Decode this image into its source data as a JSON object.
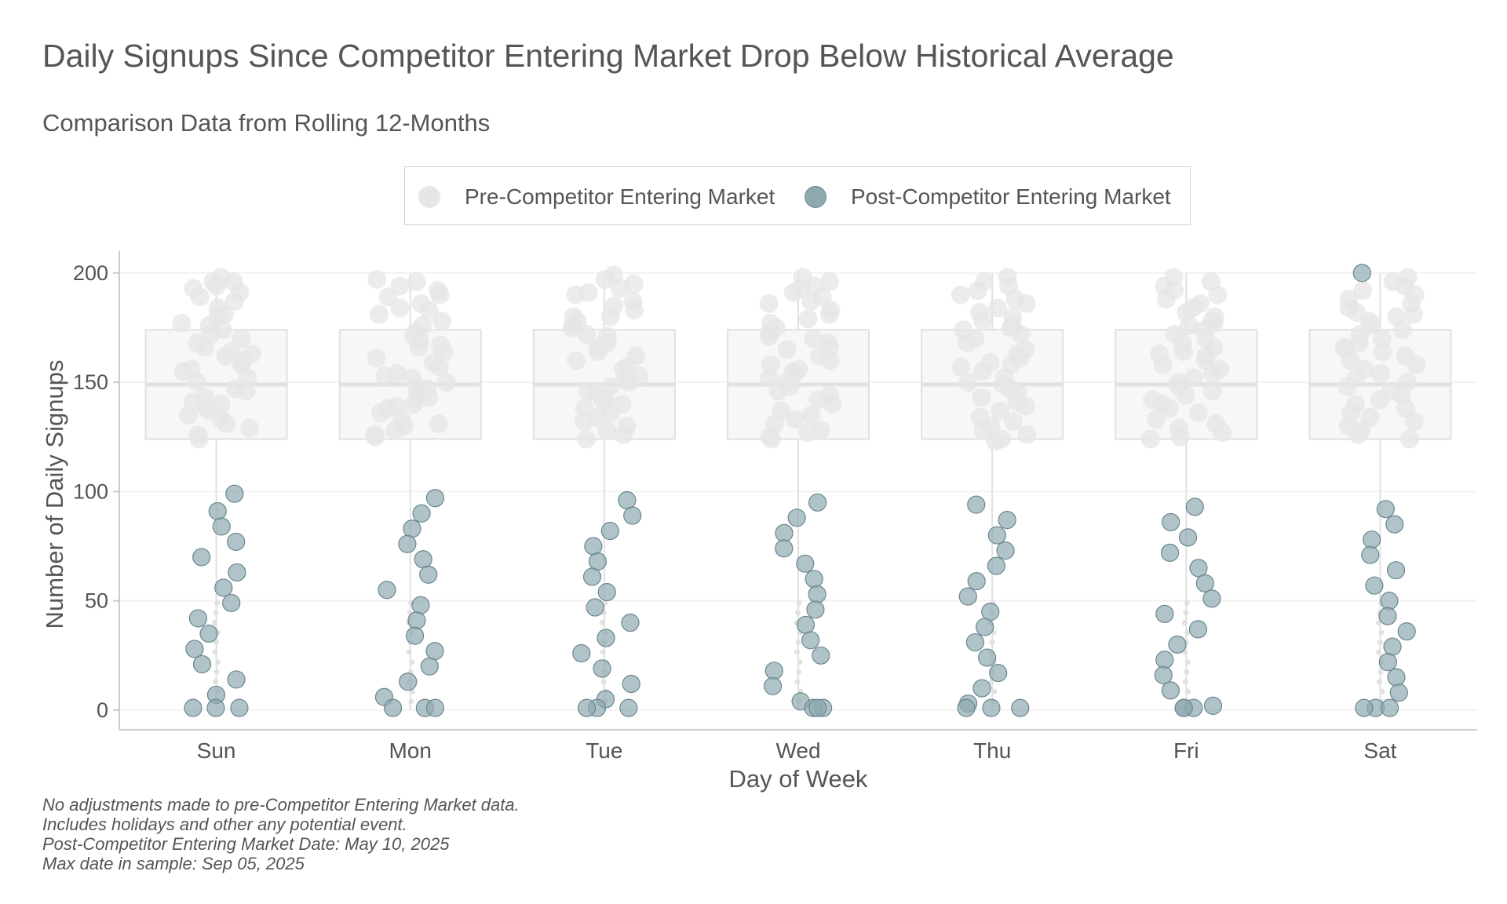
{
  "title": "Daily Signups Since Competitor Entering Market Drop Below Historical Average",
  "subtitle": "Comparison Data from Rolling 12-Months",
  "legend": {
    "pre_label": "Pre-Competitor Entering Market",
    "post_label": "Post-Competitor Entering Market"
  },
  "colors": {
    "pre_point": "#e6e6e6",
    "post_point": "#8fa9b0",
    "post_point_stroke": "#6b878f",
    "box_fill": "#f7f7f7",
    "box_stroke": "#e1e1e1",
    "axis_line": "#cccccc",
    "grid": "#f2f2f2",
    "text": "#555555"
  },
  "footnotes": [
    "No adjustments made to pre-Competitor Entering Market data.",
    "Includes holidays and other any potential event.",
    "Post-Competitor Entering Market Date: May 10, 2025",
    "Max date in sample: Sep 05, 2025"
  ],
  "chart_data": {
    "type": "scatter",
    "subtype": "jittered strip plot with boxplot of pre-competitor period",
    "title": "Daily Signups Since Competitor Entering Market Drop Below Historical Average",
    "subtitle": "Comparison Data from Rolling 12-Months",
    "xlabel": "Day of Week",
    "ylabel": "Number of Daily Signups",
    "categories": [
      "Sun",
      "Mon",
      "Tue",
      "Wed",
      "Thu",
      "Fri",
      "Sat"
    ],
    "ylim": [
      -9,
      210
    ],
    "yticks": [
      0,
      50,
      100,
      150,
      200
    ],
    "grid": true,
    "legend_position": "top",
    "boxplots": [
      {
        "category": "Sun",
        "q1": 124,
        "median": 149,
        "q3": 174,
        "whisker_low": 0,
        "whisker_high": 200
      },
      {
        "category": "Mon",
        "q1": 124,
        "median": 149,
        "q3": 174,
        "whisker_low": 0,
        "whisker_high": 200
      },
      {
        "category": "Tue",
        "q1": 124,
        "median": 149,
        "q3": 174,
        "whisker_low": 0,
        "whisker_high": 200
      },
      {
        "category": "Wed",
        "q1": 124,
        "median": 149,
        "q3": 174,
        "whisker_low": 0,
        "whisker_high": 200
      },
      {
        "category": "Thu",
        "q1": 124,
        "median": 149,
        "q3": 174,
        "whisker_low": 0,
        "whisker_high": 200
      },
      {
        "category": "Fri",
        "q1": 124,
        "median": 149,
        "q3": 174,
        "whisker_low": 0,
        "whisker_high": 200
      },
      {
        "category": "Sat",
        "q1": 124,
        "median": 149,
        "q3": 174,
        "whisker_low": 0,
        "whisker_high": 200
      }
    ],
    "series": [
      {
        "name": "Pre-Competitor Entering Market",
        "points": [
          {
            "category": "Sun",
            "values": [
              193,
              196,
              198,
              196,
              189,
              191,
              187,
              194,
              180,
              184,
              177,
              174,
              181,
              176,
              170,
              166,
              172,
              168,
              163,
              164,
              160,
              158,
              155,
              162,
              152,
              150,
              147,
              156,
              146,
              141,
              143,
              140,
              138,
              137,
              133,
              135,
              131,
              129,
              126,
              124
            ]
          },
          {
            "category": "Mon",
            "values": [
              196,
              197,
              194,
              192,
              189,
              190,
              186,
              183,
              181,
              176,
              178,
              173,
              171,
              169,
              166,
              164,
              167,
              161,
              159,
              157,
              154,
              153,
              150,
              148,
              147,
              145,
              143,
              142,
              139,
              138,
              136,
              133,
              131,
              130,
              128,
              126,
              125,
              140,
              152,
              184
            ]
          },
          {
            "category": "Tue",
            "values": [
              199,
              197,
              195,
              193,
              190,
              191,
              187,
              185,
              183,
              180,
              178,
              176,
              175,
              172,
              171,
              168,
              166,
              164,
              162,
              160,
              157,
              156,
              153,
              151,
              150,
              148,
              145,
              143,
              141,
              140,
              138,
              136,
              134,
              132,
              130,
              128,
              126,
              124,
              146,
              180
            ]
          },
          {
            "category": "Wed",
            "values": [
              198,
              196,
              194,
              193,
              191,
              189,
              187,
              186,
              183,
              181,
              179,
              177,
              175,
              173,
              170,
              168,
              166,
              165,
              162,
              160,
              158,
              156,
              155,
              152,
              150,
              148,
              146,
              144,
              142,
              140,
              137,
              135,
              133,
              131,
              128,
              127,
              125,
              124,
              154,
              171
            ]
          },
          {
            "category": "Thu",
            "values": [
              198,
              196,
              194,
              192,
              190,
              188,
              186,
              184,
              182,
              180,
              178,
              176,
              174,
              172,
              170,
              168,
              165,
              163,
              161,
              159,
              157,
              155,
              152,
              150,
              149,
              147,
              145,
              143,
              141,
              139,
              137,
              134,
              132,
              130,
              128,
              126,
              124,
              123,
              158,
              175
            ]
          },
          {
            "category": "Fri",
            "values": [
              198,
              196,
              194,
              192,
              190,
              188,
              186,
              184,
              182,
              180,
              178,
              176,
              174,
              172,
              170,
              168,
              166,
              164,
              162,
              160,
              158,
              156,
              154,
              152,
              150,
              148,
              146,
              144,
              142,
              140,
              138,
              136,
              133,
              131,
              129,
              127,
              125,
              124,
              163,
              177
            ]
          },
          {
            "category": "Sat",
            "values": [
              198,
              196,
              194,
              192,
              190,
              188,
              186,
              184,
              182,
              180,
              178,
              176,
              174,
              172,
              170,
              168,
              166,
              164,
              162,
              160,
              158,
              156,
              154,
              152,
              150,
              148,
              146,
              144,
              142,
              140,
              138,
              136,
              134,
              132,
              130,
              128,
              126,
              124,
              165,
              181
            ]
          }
        ]
      },
      {
        "name": "Post-Competitor Entering Market",
        "points": [
          {
            "category": "Sun",
            "values": [
              99,
              91,
              84,
              77,
              70,
              63,
              56,
              49,
              42,
              35,
              28,
              21,
              14,
              7,
              1,
              1,
              1
            ]
          },
          {
            "category": "Mon",
            "values": [
              97,
              90,
              83,
              76,
              69,
              62,
              55,
              48,
              41,
              34,
              27,
              20,
              13,
              6,
              1,
              1,
              1
            ]
          },
          {
            "category": "Tue",
            "values": [
              96,
              89,
              82,
              75,
              68,
              61,
              54,
              47,
              40,
              33,
              26,
              19,
              12,
              5,
              1,
              1,
              1
            ]
          },
          {
            "category": "Wed",
            "values": [
              95,
              88,
              81,
              74,
              67,
              60,
              53,
              46,
              39,
              32,
              25,
              18,
              11,
              4,
              1,
              1,
              1
            ]
          },
          {
            "category": "Thu",
            "values": [
              94,
              87,
              80,
              73,
              66,
              59,
              52,
              45,
              38,
              31,
              24,
              17,
              10,
              3,
              1,
              1,
              1
            ]
          },
          {
            "category": "Fri",
            "values": [
              93,
              86,
              79,
              72,
              65,
              58,
              51,
              44,
              37,
              30,
              23,
              16,
              9,
              2,
              1,
              1,
              1
            ]
          },
          {
            "category": "Sat",
            "values": [
              200,
              92,
              85,
              78,
              71,
              64,
              57,
              50,
              43,
              36,
              29,
              22,
              15,
              8,
              1,
              1,
              1
            ]
          }
        ]
      }
    ]
  }
}
